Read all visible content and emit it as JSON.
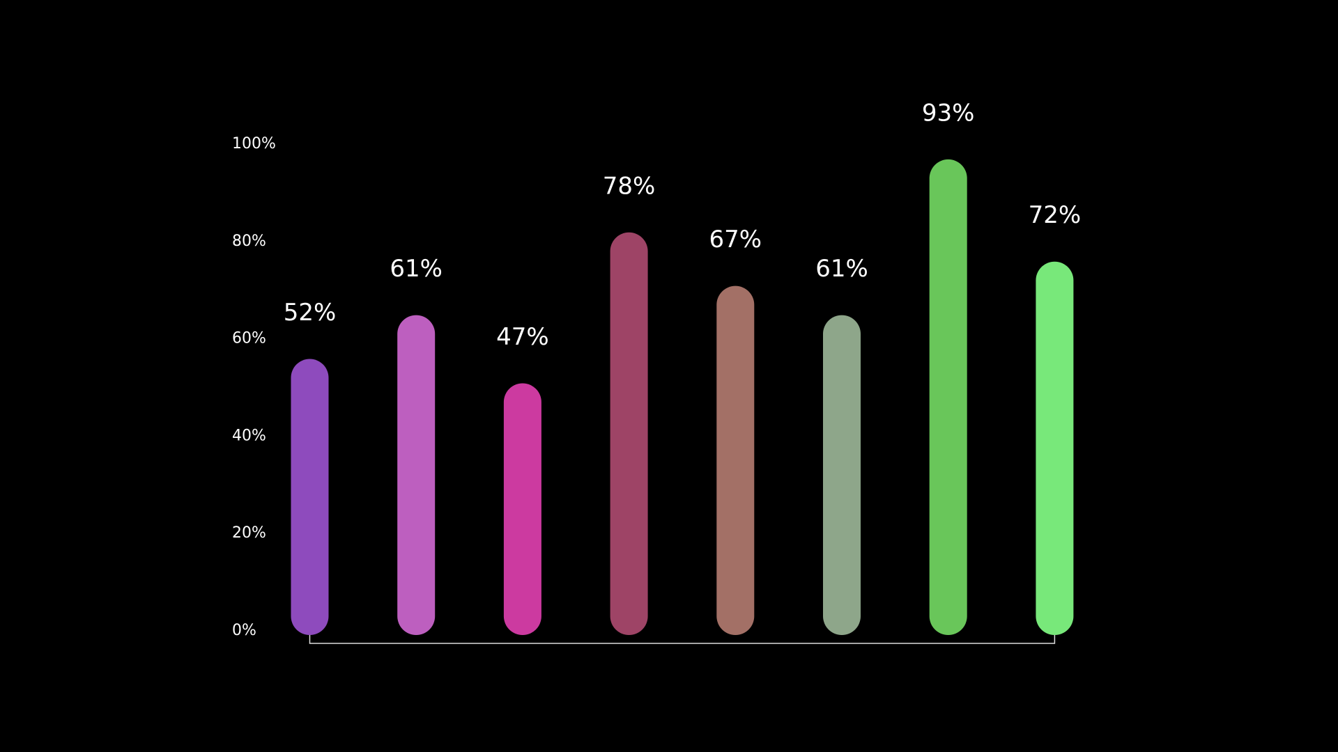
{
  "chart_data": {
    "type": "bar",
    "categories": [
      null,
      null,
      null,
      null,
      null,
      null,
      null,
      null
    ],
    "values": [
      52,
      61,
      47,
      78,
      67,
      61,
      93,
      72
    ],
    "value_labels": [
      "52%",
      "61%",
      "47%",
      "78%",
      "67%",
      "61%",
      "93%",
      "72%"
    ],
    "colors": [
      "#8e4bbd",
      "#bd5fbf",
      "#cc3aa0",
      "#9e4466",
      "#a37066",
      "#8ea68a",
      "#69c65a",
      "#78e87a"
    ],
    "ylim": [
      0,
      100
    ],
    "yticks": [
      {
        "value": 0,
        "label": "0%"
      },
      {
        "value": 20,
        "label": "20%"
      },
      {
        "value": 40,
        "label": "40%"
      },
      {
        "value": 60,
        "label": "60%"
      },
      {
        "value": 80,
        "label": "80%"
      },
      {
        "value": 100,
        "label": "100%"
      }
    ],
    "grid": false
  }
}
